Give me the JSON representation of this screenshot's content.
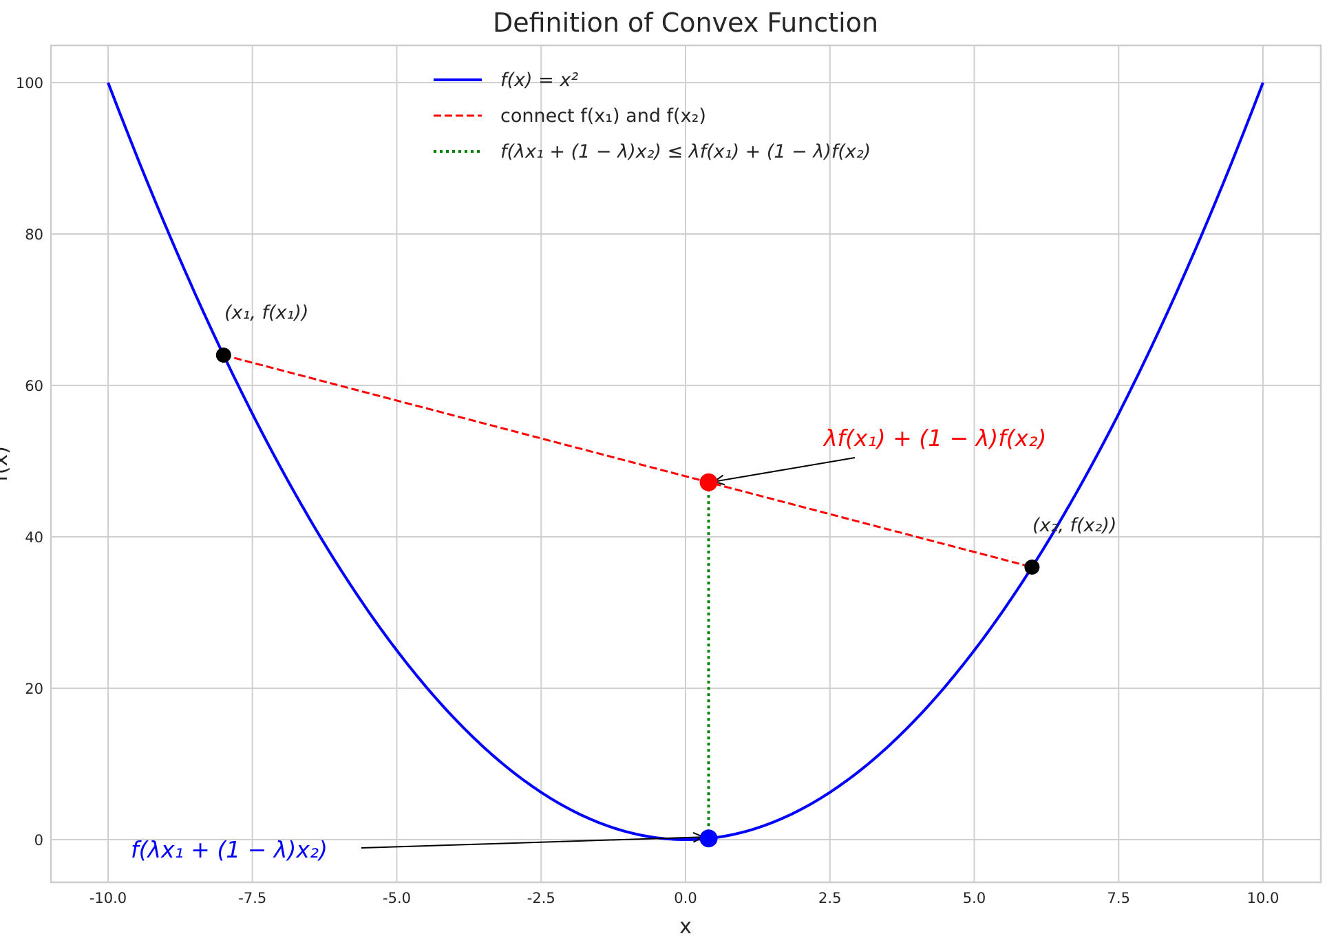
{
  "chart_data": {
    "type": "line",
    "title": "Definition of Convex Function",
    "xlabel": "x",
    "ylabel": "f(x)",
    "xlim": [
      -11,
      11
    ],
    "ylim": [
      -5,
      105
    ],
    "grid": true,
    "legend_placement": "top-center",
    "xticks": [
      "-10.0",
      "-7.5",
      "-5.0",
      "-2.5",
      "0.0",
      "2.5",
      "5.0",
      "7.5",
      "10.0"
    ],
    "xtick_values": [
      -10,
      -7.5,
      -5,
      -2.5,
      0,
      2.5,
      5,
      7.5,
      10
    ],
    "yticks": [
      "0",
      "20",
      "40",
      "60",
      "80",
      "100"
    ],
    "ytick_values": [
      0,
      20,
      40,
      60,
      80,
      100
    ],
    "series": [
      {
        "name": "f(x) = x²",
        "kind": "curve",
        "function": "x^2",
        "x_range": [
          -10,
          10
        ],
        "color": "#0000ff",
        "style": "solid"
      },
      {
        "name": "connect f(x₁) and f(x₂)",
        "kind": "segment",
        "x": [
          -8,
          6
        ],
        "y": [
          64,
          36
        ],
        "color": "#ff0000",
        "style": "dashed"
      },
      {
        "name": "f(λx₁ + (1 − λ)x₂) ≤ λf(x₁) + (1 − λ)f(x₂)",
        "kind": "segment",
        "x": [
          0.4,
          0.4
        ],
        "y": [
          0.16,
          47.2
        ],
        "color": "#008000",
        "style": "dotted"
      }
    ],
    "points": [
      {
        "x": -8,
        "y": 64,
        "color": "#000000",
        "label": "(x₁, f(x₁))"
      },
      {
        "x": 6,
        "y": 36,
        "color": "#000000",
        "label": "(x₂, f(x₂))"
      },
      {
        "x": 0.4,
        "y": 47.2,
        "color": "#ff0000"
      },
      {
        "x": 0.4,
        "y": 0.16,
        "color": "#0000ff"
      }
    ],
    "annotations": [
      {
        "text": "λf(x₁) + (1 − λ)f(x₂)",
        "color": "#ff0000",
        "target": [
          0.4,
          47.2
        ]
      },
      {
        "text": "f(λx₁ + (1 − λ)x₂)",
        "color": "#0000ff",
        "target": [
          0.4,
          0.16
        ]
      }
    ]
  }
}
